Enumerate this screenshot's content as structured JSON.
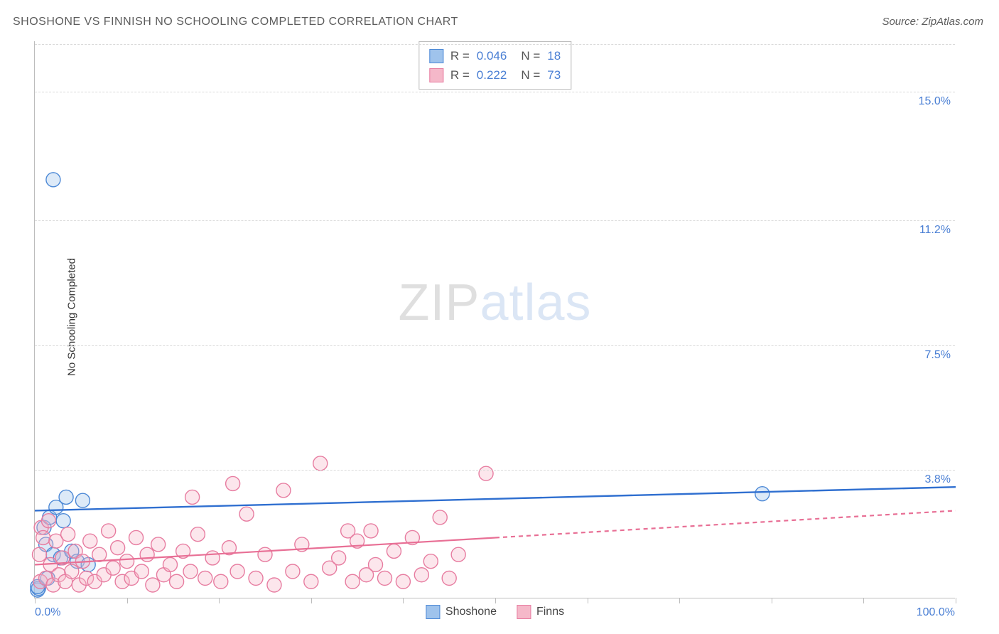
{
  "title": "SHOSHONE VS FINNISH NO SCHOOLING COMPLETED CORRELATION CHART",
  "source": "Source: ZipAtlas.com",
  "ylabel": "No Schooling Completed",
  "watermark": {
    "a": "ZIP",
    "b": "atlas"
  },
  "chart": {
    "type": "scatter",
    "xlim": [
      0,
      100
    ],
    "ylim": [
      0,
      16.5
    ],
    "x_ticks": [
      0,
      10,
      20,
      30,
      40,
      50,
      60,
      70,
      80,
      90,
      100
    ],
    "y_gridlines": [
      {
        "y": 3.8,
        "label": "3.8%"
      },
      {
        "y": 7.5,
        "label": "7.5%"
      },
      {
        "y": 11.2,
        "label": "11.2%"
      },
      {
        "y": 15.0,
        "label": "15.0%"
      }
    ],
    "x_label_min": "0.0%",
    "x_label_max": "100.0%",
    "background_color": "#ffffff",
    "grid_color": "#d9d9d9",
    "axis_color": "#bdbdbd",
    "tick_label_color": "#4a7fd4",
    "marker_radius": 10,
    "marker_fill_opacity": 0.35,
    "marker_stroke_width": 1.4,
    "series": [
      {
        "name": "Shoshone",
        "color_fill": "#9fc3ec",
        "color_stroke": "#4d89d6",
        "line_color": "#2f6fd0",
        "line_width": 2.4,
        "R": "0.046",
        "N": "18",
        "trend": {
          "x1": 0,
          "y1": 2.6,
          "x2": 100,
          "y2": 3.3
        },
        "trend_dash_after_x": null,
        "points": [
          {
            "x": 0.3,
            "y": 0.25
          },
          {
            "x": 0.4,
            "y": 0.3
          },
          {
            "x": 0.3,
            "y": 0.35
          },
          {
            "x": 1.0,
            "y": 2.1
          },
          {
            "x": 1.2,
            "y": 1.6
          },
          {
            "x": 1.6,
            "y": 2.4
          },
          {
            "x": 2.0,
            "y": 1.3
          },
          {
            "x": 2.3,
            "y": 2.7
          },
          {
            "x": 2.8,
            "y": 1.2
          },
          {
            "x": 3.1,
            "y": 2.3
          },
          {
            "x": 3.4,
            "y": 3.0
          },
          {
            "x": 4.0,
            "y": 1.4
          },
          {
            "x": 4.6,
            "y": 1.1
          },
          {
            "x": 5.2,
            "y": 2.9
          },
          {
            "x": 5.8,
            "y": 1.0
          },
          {
            "x": 2.0,
            "y": 12.4
          },
          {
            "x": 79.0,
            "y": 3.1
          },
          {
            "x": 1.4,
            "y": 0.6
          }
        ]
      },
      {
        "name": "Finns",
        "color_fill": "#f5b8c9",
        "color_stroke": "#e77ca0",
        "line_color": "#e86f95",
        "line_width": 2.2,
        "R": "0.222",
        "N": "73",
        "trend": {
          "x1": 0,
          "y1": 1.0,
          "x2": 100,
          "y2": 2.6
        },
        "trend_dash_after_x": 50,
        "points": [
          {
            "x": 0.5,
            "y": 1.3
          },
          {
            "x": 0.7,
            "y": 2.1
          },
          {
            "x": 0.6,
            "y": 0.5
          },
          {
            "x": 0.9,
            "y": 1.8
          },
          {
            "x": 1.2,
            "y": 0.6
          },
          {
            "x": 1.5,
            "y": 2.3
          },
          {
            "x": 1.7,
            "y": 1.0
          },
          {
            "x": 2.0,
            "y": 0.4
          },
          {
            "x": 2.3,
            "y": 1.7
          },
          {
            "x": 2.6,
            "y": 0.7
          },
          {
            "x": 3.0,
            "y": 1.2
          },
          {
            "x": 3.3,
            "y": 0.5
          },
          {
            "x": 3.6,
            "y": 1.9
          },
          {
            "x": 4.0,
            "y": 0.8
          },
          {
            "x": 4.4,
            "y": 1.4
          },
          {
            "x": 4.8,
            "y": 0.4
          },
          {
            "x": 5.2,
            "y": 1.1
          },
          {
            "x": 5.6,
            "y": 0.6
          },
          {
            "x": 6.0,
            "y": 1.7
          },
          {
            "x": 6.5,
            "y": 0.5
          },
          {
            "x": 7.0,
            "y": 1.3
          },
          {
            "x": 7.5,
            "y": 0.7
          },
          {
            "x": 8.0,
            "y": 2.0
          },
          {
            "x": 8.5,
            "y": 0.9
          },
          {
            "x": 9.0,
            "y": 1.5
          },
          {
            "x": 9.5,
            "y": 0.5
          },
          {
            "x": 10.0,
            "y": 1.1
          },
          {
            "x": 10.5,
            "y": 0.6
          },
          {
            "x": 11.0,
            "y": 1.8
          },
          {
            "x": 11.6,
            "y": 0.8
          },
          {
            "x": 12.2,
            "y": 1.3
          },
          {
            "x": 12.8,
            "y": 0.4
          },
          {
            "x": 13.4,
            "y": 1.6
          },
          {
            "x": 14.0,
            "y": 0.7
          },
          {
            "x": 14.7,
            "y": 1.0
          },
          {
            "x": 15.4,
            "y": 0.5
          },
          {
            "x": 16.1,
            "y": 1.4
          },
          {
            "x": 16.9,
            "y": 0.8
          },
          {
            "x": 17.7,
            "y": 1.9
          },
          {
            "x": 18.5,
            "y": 0.6
          },
          {
            "x": 19.3,
            "y": 1.2
          },
          {
            "x": 20.2,
            "y": 0.5
          },
          {
            "x": 21.1,
            "y": 1.5
          },
          {
            "x": 22.0,
            "y": 0.8
          },
          {
            "x": 23.0,
            "y": 2.5
          },
          {
            "x": 24.0,
            "y": 0.6
          },
          {
            "x": 25.0,
            "y": 1.3
          },
          {
            "x": 26.0,
            "y": 0.4
          },
          {
            "x": 27.0,
            "y": 3.2
          },
          {
            "x": 28.0,
            "y": 0.8
          },
          {
            "x": 29.0,
            "y": 1.6
          },
          {
            "x": 30.0,
            "y": 0.5
          },
          {
            "x": 31.0,
            "y": 4.0
          },
          {
            "x": 32.0,
            "y": 0.9
          },
          {
            "x": 33.0,
            "y": 1.2
          },
          {
            "x": 34.0,
            "y": 2.0
          },
          {
            "x": 34.5,
            "y": 0.5
          },
          {
            "x": 35.0,
            "y": 1.7
          },
          {
            "x": 36.0,
            "y": 0.7
          },
          {
            "x": 36.5,
            "y": 2.0
          },
          {
            "x": 37.0,
            "y": 1.0
          },
          {
            "x": 38.0,
            "y": 0.6
          },
          {
            "x": 39.0,
            "y": 1.4
          },
          {
            "x": 40.0,
            "y": 0.5
          },
          {
            "x": 41.0,
            "y": 1.8
          },
          {
            "x": 42.0,
            "y": 0.7
          },
          {
            "x": 43.0,
            "y": 1.1
          },
          {
            "x": 44.0,
            "y": 2.4
          },
          {
            "x": 45.0,
            "y": 0.6
          },
          {
            "x": 46.0,
            "y": 1.3
          },
          {
            "x": 49.0,
            "y": 3.7
          },
          {
            "x": 17.1,
            "y": 3.0
          },
          {
            "x": 21.5,
            "y": 3.4
          }
        ]
      }
    ],
    "legend_bottom": [
      {
        "label": "Shoshone",
        "fill": "#9fc3ec",
        "stroke": "#4d89d6"
      },
      {
        "label": "Finns",
        "fill": "#f5b8c9",
        "stroke": "#e77ca0"
      }
    ]
  }
}
